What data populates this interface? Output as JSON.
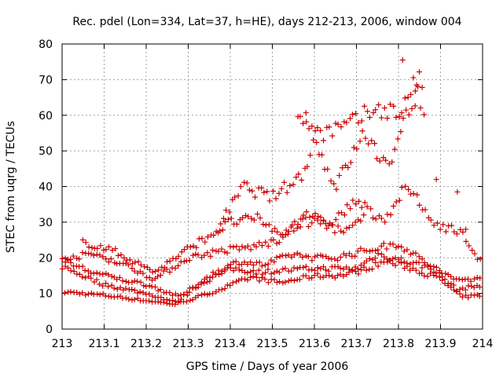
{
  "chart_data": {
    "type": "scatter",
    "title": "Rec. pdel (Lon=334, Lat=37, h=HE), days 212-213, 2006, window 004",
    "xlabel": "GPS time / Days of year 2006",
    "ylabel": "STEC from uqrg / TECUs",
    "xlim": [
      213,
      214
    ],
    "ylim": [
      0,
      80
    ],
    "xticks": [
      "213",
      "213.1",
      "213.2",
      "213.3",
      "213.4",
      "213.5",
      "213.6",
      "213.7",
      "213.8",
      "213.9",
      "214"
    ],
    "yticks": [
      "0",
      "10",
      "20",
      "30",
      "40",
      "50",
      "60",
      "70",
      "80"
    ],
    "grid": true,
    "marker": "+",
    "color": "#cc0000",
    "series_defs": [
      {
        "x0": 213.0,
        "x1": 214.0,
        "knots": [
          [
            213.0,
            10.5
          ],
          [
            213.1,
            9.5
          ],
          [
            213.2,
            8
          ],
          [
            213.27,
            7
          ],
          [
            213.35,
            10
          ],
          [
            213.45,
            14.5
          ],
          [
            213.52,
            13
          ],
          [
            213.6,
            15
          ],
          [
            213.66,
            15
          ],
          [
            213.7,
            16
          ],
          [
            213.77,
            19
          ],
          [
            213.82,
            17.5
          ],
          [
            213.9,
            14
          ],
          [
            213.95,
            9
          ],
          [
            214.0,
            9.5
          ]
        ]
      },
      {
        "x0": 213.0,
        "x1": 214.0,
        "knots": [
          [
            213.0,
            17.5
          ],
          [
            213.1,
            12.5
          ],
          [
            213.2,
            10
          ],
          [
            213.27,
            7.5
          ],
          [
            213.32,
            12
          ],
          [
            213.4,
            17
          ],
          [
            213.47,
            16
          ],
          [
            213.53,
            16.5
          ],
          [
            213.6,
            17
          ],
          [
            213.66,
            17
          ],
          [
            213.7,
            17
          ],
          [
            213.75,
            21
          ],
          [
            213.82,
            19
          ],
          [
            213.88,
            17
          ],
          [
            213.94,
            11
          ],
          [
            214.0,
            12.5
          ]
        ]
      },
      {
        "x0": 213.0,
        "x1": 214.0,
        "knots": [
          [
            213.0,
            19.5
          ],
          [
            213.07,
            16
          ],
          [
            213.12,
            14.5
          ],
          [
            213.2,
            12.5
          ],
          [
            213.28,
            9
          ],
          [
            213.35,
            15
          ],
          [
            213.42,
            19
          ],
          [
            213.48,
            18
          ],
          [
            213.55,
            21
          ],
          [
            213.6,
            20
          ],
          [
            213.65,
            20
          ],
          [
            213.72,
            22
          ],
          [
            213.8,
            24
          ],
          [
            213.86,
            19
          ],
          [
            213.93,
            14
          ],
          [
            214.0,
            14
          ]
        ]
      },
      {
        "x0": 213.0,
        "x1": 213.72,
        "knots": [
          [
            213.0,
            20
          ],
          [
            213.08,
            21
          ],
          [
            213.15,
            18
          ],
          [
            213.22,
            14
          ],
          [
            213.3,
            20
          ],
          [
            213.38,
            22
          ],
          [
            213.45,
            23
          ],
          [
            213.52,
            25
          ],
          [
            213.57,
            30
          ],
          [
            213.62,
            30
          ],
          [
            213.67,
            27
          ],
          [
            213.72,
            31
          ]
        ]
      },
      {
        "x0": 213.05,
        "x1": 214.0,
        "knots": [
          [
            213.05,
            24.5
          ],
          [
            213.12,
            22
          ],
          [
            213.22,
            16
          ],
          [
            213.32,
            24
          ],
          [
            213.4,
            30
          ],
          [
            213.47,
            31
          ],
          [
            213.52,
            26
          ],
          [
            213.58,
            33
          ],
          [
            213.63,
            29
          ],
          [
            213.7,
            36
          ],
          [
            213.76,
            30
          ],
          [
            213.82,
            40
          ],
          [
            213.88,
            30
          ],
          [
            213.95,
            27
          ],
          [
            214.0,
            18
          ]
        ]
      },
      {
        "x0": 213.37,
        "x1": 213.86,
        "knots": [
          [
            213.37,
            28
          ],
          [
            213.43,
            40
          ],
          [
            213.5,
            37
          ],
          [
            213.57,
            43
          ],
          [
            213.6,
            53
          ],
          [
            213.65,
            40
          ],
          [
            213.72,
            55
          ],
          [
            213.78,
            44
          ],
          [
            213.81,
            60
          ],
          [
            213.85,
            66.5
          ],
          [
            213.86,
            58
          ]
        ]
      },
      {
        "x0": 213.56,
        "x1": 213.86,
        "knots": [
          [
            213.56,
            60.5
          ],
          [
            213.61,
            55
          ],
          [
            213.68,
            57
          ],
          [
            213.74,
            61.5
          ],
          [
            213.77,
            62
          ],
          [
            213.8,
            60
          ],
          [
            213.83,
            68
          ],
          [
            213.86,
            70
          ]
        ]
      }
    ],
    "extra_points": [
      [
        213.81,
        75.5
      ],
      [
        213.84,
        66.8
      ],
      [
        213.58,
        60.7
      ],
      [
        213.89,
        42
      ],
      [
        213.94,
        38.5
      ],
      [
        213.96,
        28
      ]
    ]
  }
}
